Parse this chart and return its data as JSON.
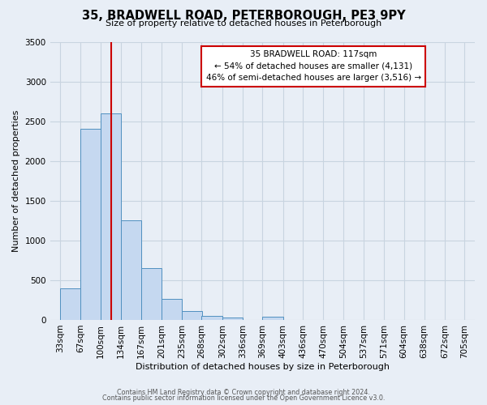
{
  "title": "35, BRADWELL ROAD, PETERBOROUGH, PE3 9PY",
  "subtitle": "Size of property relative to detached houses in Peterborough",
  "xlabel": "Distribution of detached houses by size in Peterborough",
  "ylabel": "Number of detached properties",
  "bin_labels": [
    "33sqm",
    "67sqm",
    "100sqm",
    "134sqm",
    "167sqm",
    "201sqm",
    "235sqm",
    "268sqm",
    "302sqm",
    "336sqm",
    "369sqm",
    "403sqm",
    "436sqm",
    "470sqm",
    "504sqm",
    "537sqm",
    "571sqm",
    "604sqm",
    "638sqm",
    "672sqm",
    "705sqm"
  ],
  "bin_edges": [
    33,
    67,
    100,
    134,
    167,
    201,
    235,
    268,
    302,
    336,
    369,
    403,
    436,
    470,
    504,
    537,
    571,
    604,
    638,
    672,
    705
  ],
  "bar_heights": [
    400,
    2400,
    2600,
    1250,
    650,
    260,
    110,
    55,
    35,
    0,
    45,
    0,
    0,
    0,
    0,
    0,
    0,
    0,
    0,
    0
  ],
  "bar_color": "#c5d8f0",
  "bar_edge_color": "#5090c0",
  "ylim": [
    0,
    3500
  ],
  "yticks": [
    0,
    500,
    1000,
    1500,
    2000,
    2500,
    3000,
    3500
  ],
  "vline_x": 117,
  "vline_color": "#cc0000",
  "annotation_title": "35 BRADWELL ROAD: 117sqm",
  "annotation_line1": "← 54% of detached houses are smaller (4,131)",
  "annotation_line2": "46% of semi-detached houses are larger (3,516) →",
  "annotation_box_color": "#ffffff",
  "annotation_box_edge_color": "#cc0000",
  "footer1": "Contains HM Land Registry data © Crown copyright and database right 2024.",
  "footer2": "Contains public sector information licensed under the Open Government Licence v3.0.",
  "background_color": "#e8eef6",
  "plot_background_color": "#e8eef6",
  "grid_color": "#c8d4e0"
}
